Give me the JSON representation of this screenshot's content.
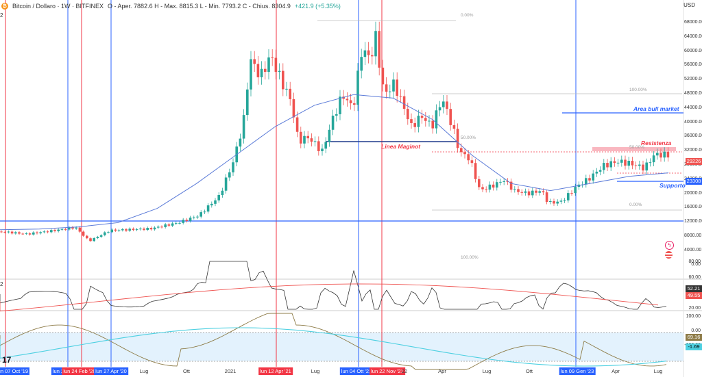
{
  "header": {
    "logo_glyph": "₿",
    "title": "Bitcoin / Dollaro · 1W · BITFINEX",
    "ohlc": "O - Aper. 7882.6  H - Max. 8815.3  L - Min. 7793.2  C - Chius. 8304.9",
    "change": "+421.9 (+5.35%)"
  },
  "currency_label": "USD",
  "pane_buttons": [
    "2",
    "2"
  ],
  "price_axis": [
    "68000.00",
    "64000.00",
    "60000.00",
    "56000.00",
    "52000.00",
    "48000.00",
    "44000.00",
    "40000.00",
    "36000.00",
    "32000.00",
    "28000.00",
    "24000.00",
    "20000.00",
    "16000.00",
    "12000.00",
    "8000.00",
    "4000.00",
    "0.00"
  ],
  "price_tags": {
    "current": "29226",
    "support": "23308",
    "rsi": "52.21",
    "rsi_ma": "49.55",
    "osc_a": "69.16",
    "osc_b": "-1.69"
  },
  "rsi_axis": [
    "80.00",
    "60.00",
    "40.00",
    "20.00"
  ],
  "osc_axis": [
    "100.00",
    "0.00",
    "-100.00"
  ],
  "x_labels": {
    "highlighted": [
      {
        "text": "lun 07 Oct '19",
        "color": "#2962ff"
      },
      {
        "text": "lun 2",
        "color": "#2962ff"
      },
      {
        "text": "lun 24 Feb '20",
        "color": "#f23645"
      },
      {
        "text": "lun 27 Apr '20",
        "color": "#2962ff"
      },
      {
        "text": "lun 12 Apr '21",
        "color": "#f23645"
      },
      {
        "text": "lun 04 Ott '21",
        "color": "#2962ff"
      },
      {
        "text": "lun 22 Nov '21",
        "color": "#f23645"
      },
      {
        "text": "lun 09 Gen '23",
        "color": "#2962ff"
      }
    ],
    "plain": [
      "Lug",
      "Ott",
      "2021",
      "Lug",
      "22",
      "Apr",
      "Lug",
      "Ott",
      "Apr",
      "Lug"
    ]
  },
  "annotations": {
    "area_bull": "Area bull market",
    "resistenza": "Resistenza",
    "linea_maginot": "Linea Maginot",
    "supporto": "Supporto"
  },
  "fib_labels": [
    "0.00%",
    "100.00%",
    "50.00%",
    "50.00%",
    "0.00%",
    "100.00%"
  ],
  "icons": [
    "lightning-icon",
    "flag-icon",
    "tradingview-logo"
  ],
  "colors": {
    "up": "#26a69a",
    "down": "#ef5350",
    "ma": "#5b7bd8",
    "blue_line": "#2962ff",
    "red_line": "#f23645",
    "rsi": "#333333",
    "rsi_ma": "#ef5350",
    "osc_band": "#e3f2fd",
    "osc_line": "#4dd0e1",
    "osc_olive": "#8d7b47"
  },
  "chart_data": {
    "type": "candlestick",
    "timeframe": "1W",
    "ylim": [
      0,
      70000
    ],
    "moving_average_approx": [
      9000,
      9200,
      9800,
      11000,
      15000,
      22000,
      30000,
      38000,
      44000,
      47000,
      46000,
      40000,
      30000,
      22000,
      20000,
      22000,
      24000,
      25000
    ],
    "horizontal_levels": {
      "support": 23308,
      "upper_resistance": 31000,
      "bull_area": 43000,
      "maginot": 34000,
      "long_blue": 12000
    }
  }
}
